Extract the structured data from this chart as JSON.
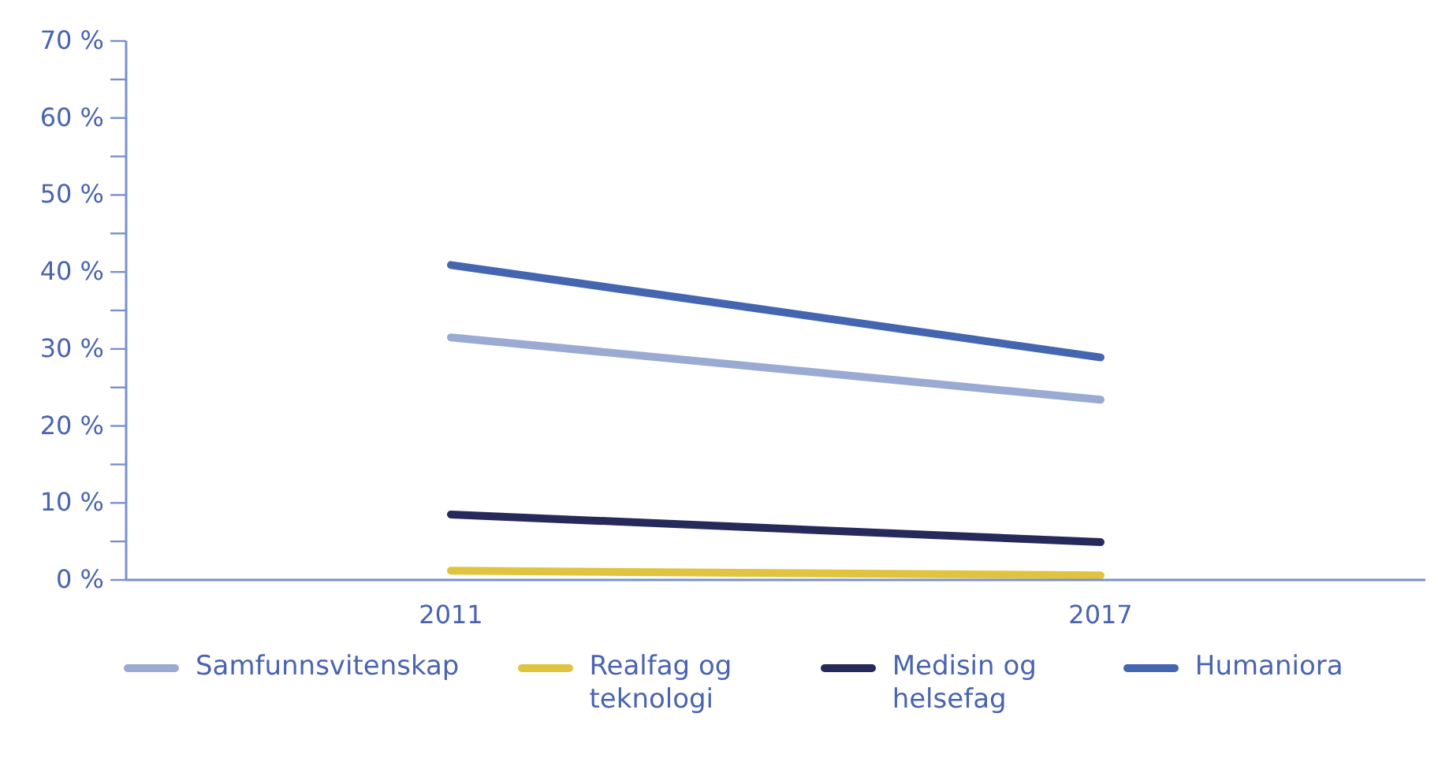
{
  "chart_data": {
    "type": "line",
    "categories": [
      "2011",
      "2017"
    ],
    "series": [
      {
        "name": "Samfunnsvitenskap",
        "color": "#9aaad2",
        "values": [
          31.5,
          23.4
        ]
      },
      {
        "name": "Realfag og teknologi",
        "color": "#e0c440",
        "values": [
          1.2,
          0.6
        ]
      },
      {
        "name": "Medisin og helsefag",
        "color": "#262a5a",
        "values": [
          8.5,
          4.9
        ]
      },
      {
        "name": "Humaniora",
        "color": "#4466b0",
        "values": [
          40.9,
          28.9
        ]
      }
    ],
    "ylim": [
      0,
      70
    ],
    "yticks": [
      {
        "value": 0,
        "label": "0 %"
      },
      {
        "value": 5,
        "label": null
      },
      {
        "value": 10,
        "label": "10 %"
      },
      {
        "value": 15,
        "label": null
      },
      {
        "value": 20,
        "label": "20 %"
      },
      {
        "value": 25,
        "label": null
      },
      {
        "value": 30,
        "label": "30 %"
      },
      {
        "value": 35,
        "label": null
      },
      {
        "value": 40,
        "label": "40 %"
      },
      {
        "value": 45,
        "label": null
      },
      {
        "value": 50,
        "label": "50 %"
      },
      {
        "value": 55,
        "label": null
      },
      {
        "value": 60,
        "label": "60 %"
      },
      {
        "value": 65,
        "label": null
      },
      {
        "value": 70,
        "label": "70 %"
      }
    ],
    "grid": false,
    "legend": "bottom",
    "marker": "none",
    "line_style": "solid"
  }
}
